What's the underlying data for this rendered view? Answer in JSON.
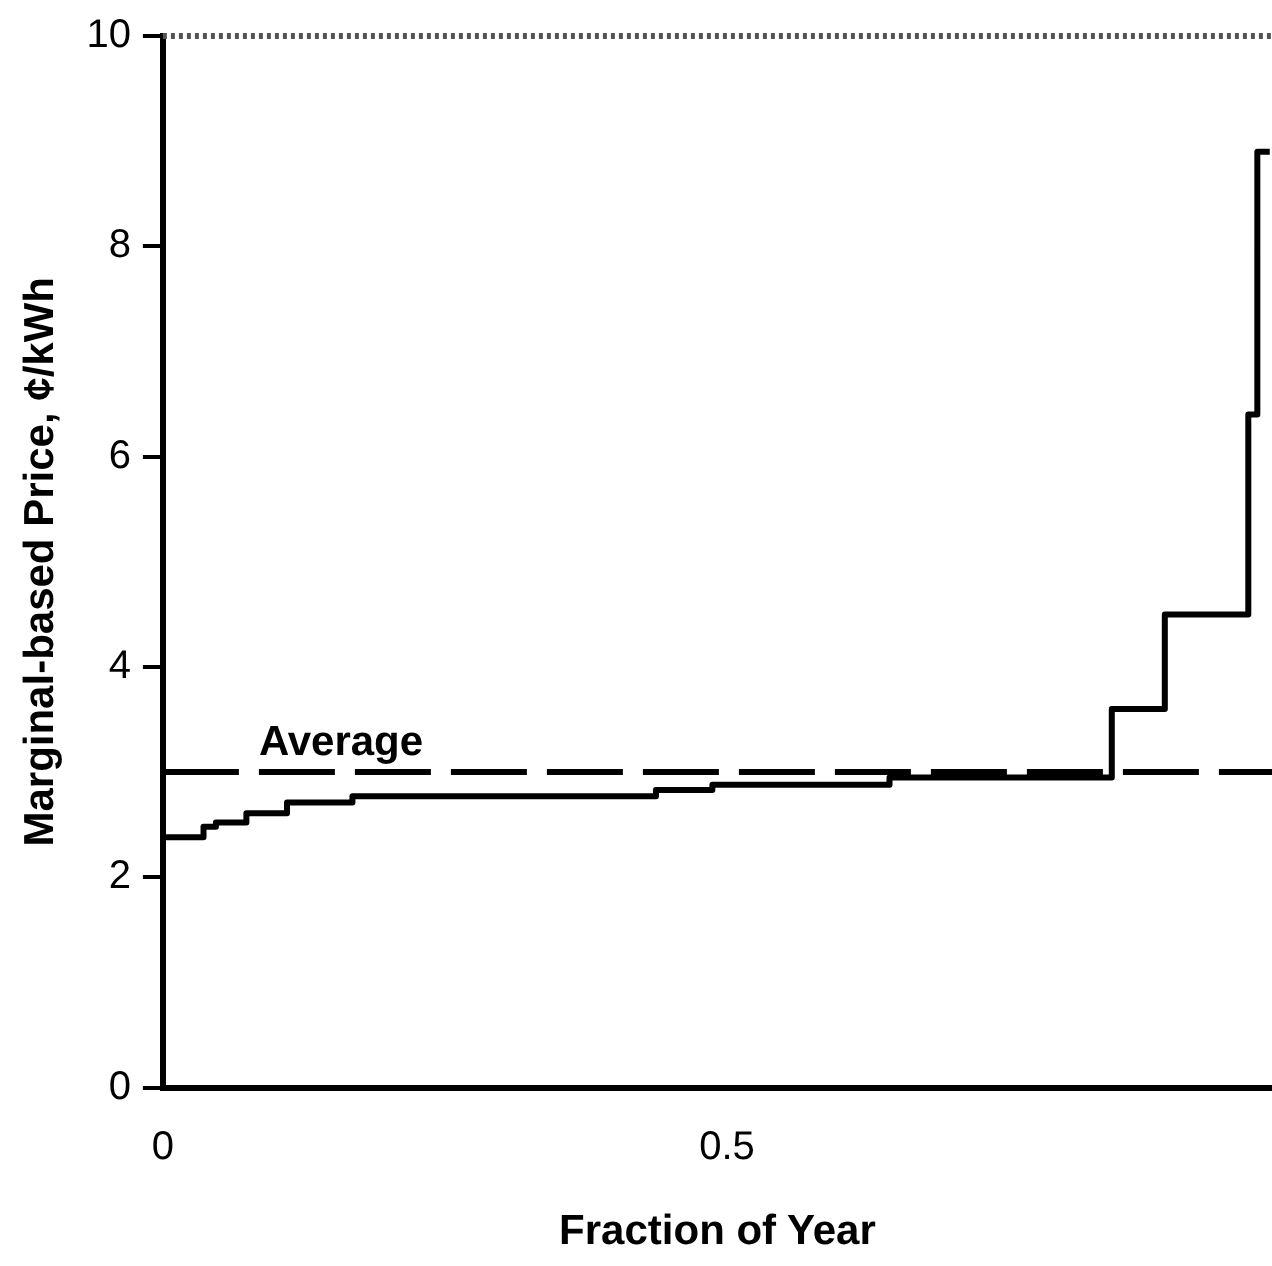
{
  "chart_data": {
    "type": "step",
    "xlabel": "Fraction of Year",
    "ylabel": "Marginal-based Price, ¢/kWh",
    "x": [
      0,
      0.036,
      0.047,
      0.074,
      0.11,
      0.168,
      0.437,
      0.487,
      0.644,
      0.841,
      0.888,
      0.944,
      0.962,
      0.97,
      0.981
    ],
    "values": [
      2.3,
      2.38,
      2.48,
      2.52,
      2.61,
      2.71,
      2.77,
      2.83,
      2.88,
      2.95,
      3.6,
      4.5,
      4.5,
      6.4,
      8.9
    ],
    "color": "#000000",
    "xlim": [
      0,
      0.983
    ],
    "xticks": [
      0,
      0.5
    ],
    "ylim": [
      0,
      10
    ],
    "yticks": [
      0,
      2,
      4,
      6,
      8,
      10
    ],
    "ref_lines": [
      {
        "axis": "y",
        "value": 3,
        "label": "Average",
        "line_style": "dashed",
        "color": "#000000"
      }
    ],
    "grid": false,
    "legend": false
  }
}
